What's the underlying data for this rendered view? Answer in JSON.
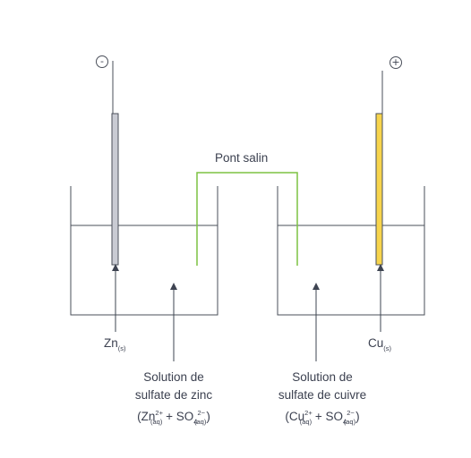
{
  "terminals": {
    "negative": "-",
    "positive": "+"
  },
  "salt_bridge": {
    "label": "Pont salin",
    "color": "#7dc242"
  },
  "zinc": {
    "electrode_symbol": "Zn",
    "electrode_state": "(s)",
    "electrode_color": "#c9cbd3",
    "solution_line1": "Solution de",
    "solution_line2": "sulfate de zinc",
    "ion1": "Zn",
    "ion1_charge": "2+",
    "ion1_state": "(aq)",
    "plus": "+",
    "ion2": "SO",
    "ion2_index": "4",
    "ion2_charge": "2−",
    "ion2_state": "(aq)"
  },
  "copper": {
    "electrode_symbol": "Cu",
    "electrode_state": "(s)",
    "electrode_color": "#f7d44c",
    "solution_line1": "Solution de",
    "solution_line2": "sulfate de cuivre",
    "ion1": "Cu",
    "ion1_charge": "2+",
    "ion1_state": "(aq)",
    "plus": "+",
    "ion2": "SO",
    "ion2_index": "4",
    "ion2_charge": "2−",
    "ion2_state": "(aq)"
  }
}
